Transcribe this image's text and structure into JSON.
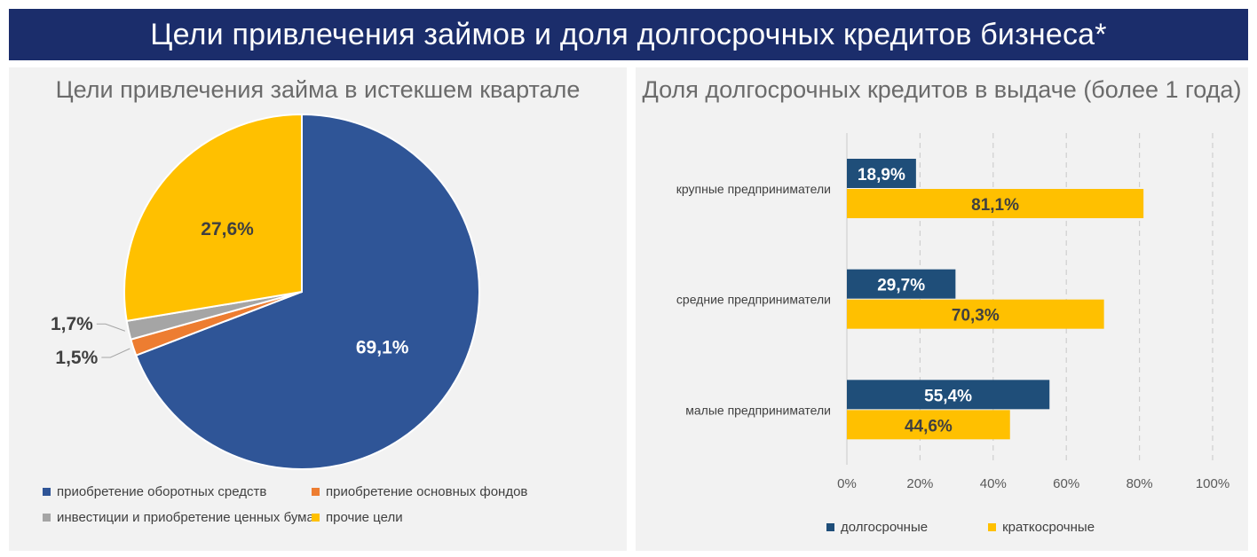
{
  "header": {
    "title": "Цели привлечения займов и доля долгосрочных кредитов бизнеса*"
  },
  "colors": {
    "navy": "#1b2d6b",
    "blue": "#2f5597",
    "darkblue": "#1f4e79",
    "orange": "#ed7d31",
    "gray": "#a5a5a5",
    "yellow": "#ffc000"
  },
  "chart_data": [
    {
      "type": "pie",
      "title": "Цели привлечения займа в истекшем квартале",
      "slices": [
        {
          "name": "приобретение оборотных средств",
          "value": 69.1,
          "label": "69,1%",
          "color": "#2f5597"
        },
        {
          "name": "приобретение основных фондов",
          "value": 1.5,
          "label": "1,5%",
          "color": "#ed7d31"
        },
        {
          "name": "инвестиции и приобретение ценных бумаг",
          "value": 1.7,
          "label": "1,7%",
          "color": "#a5a5a5"
        },
        {
          "name": "прочие цели",
          "value": 27.6,
          "label": "27,6%",
          "color": "#ffc000"
        }
      ],
      "legend_position": "bottom"
    },
    {
      "type": "bar",
      "orientation": "horizontal",
      "title": "Доля долгосрочных кредитов в выдаче (более 1 года)",
      "categories": [
        "крупные предприниматели",
        "средние предприниматели",
        "малые предприниматели"
      ],
      "series": [
        {
          "name": "долгосрочные",
          "color": "#1f4e79",
          "values": [
            18.9,
            29.7,
            55.4
          ],
          "labels": [
            "18,9%",
            "29,7%",
            "55,4%"
          ]
        },
        {
          "name": "краткосрочные",
          "color": "#ffc000",
          "values": [
            81.1,
            70.3,
            44.6
          ],
          "labels": [
            "81,1%",
            "70,3%",
            "44,6%"
          ]
        }
      ],
      "xlim": [
        0,
        100
      ],
      "xticks": [
        "0%",
        "20%",
        "40%",
        "60%",
        "80%",
        "100%"
      ],
      "grid": "vertical-dashed",
      "legend_position": "bottom"
    }
  ]
}
